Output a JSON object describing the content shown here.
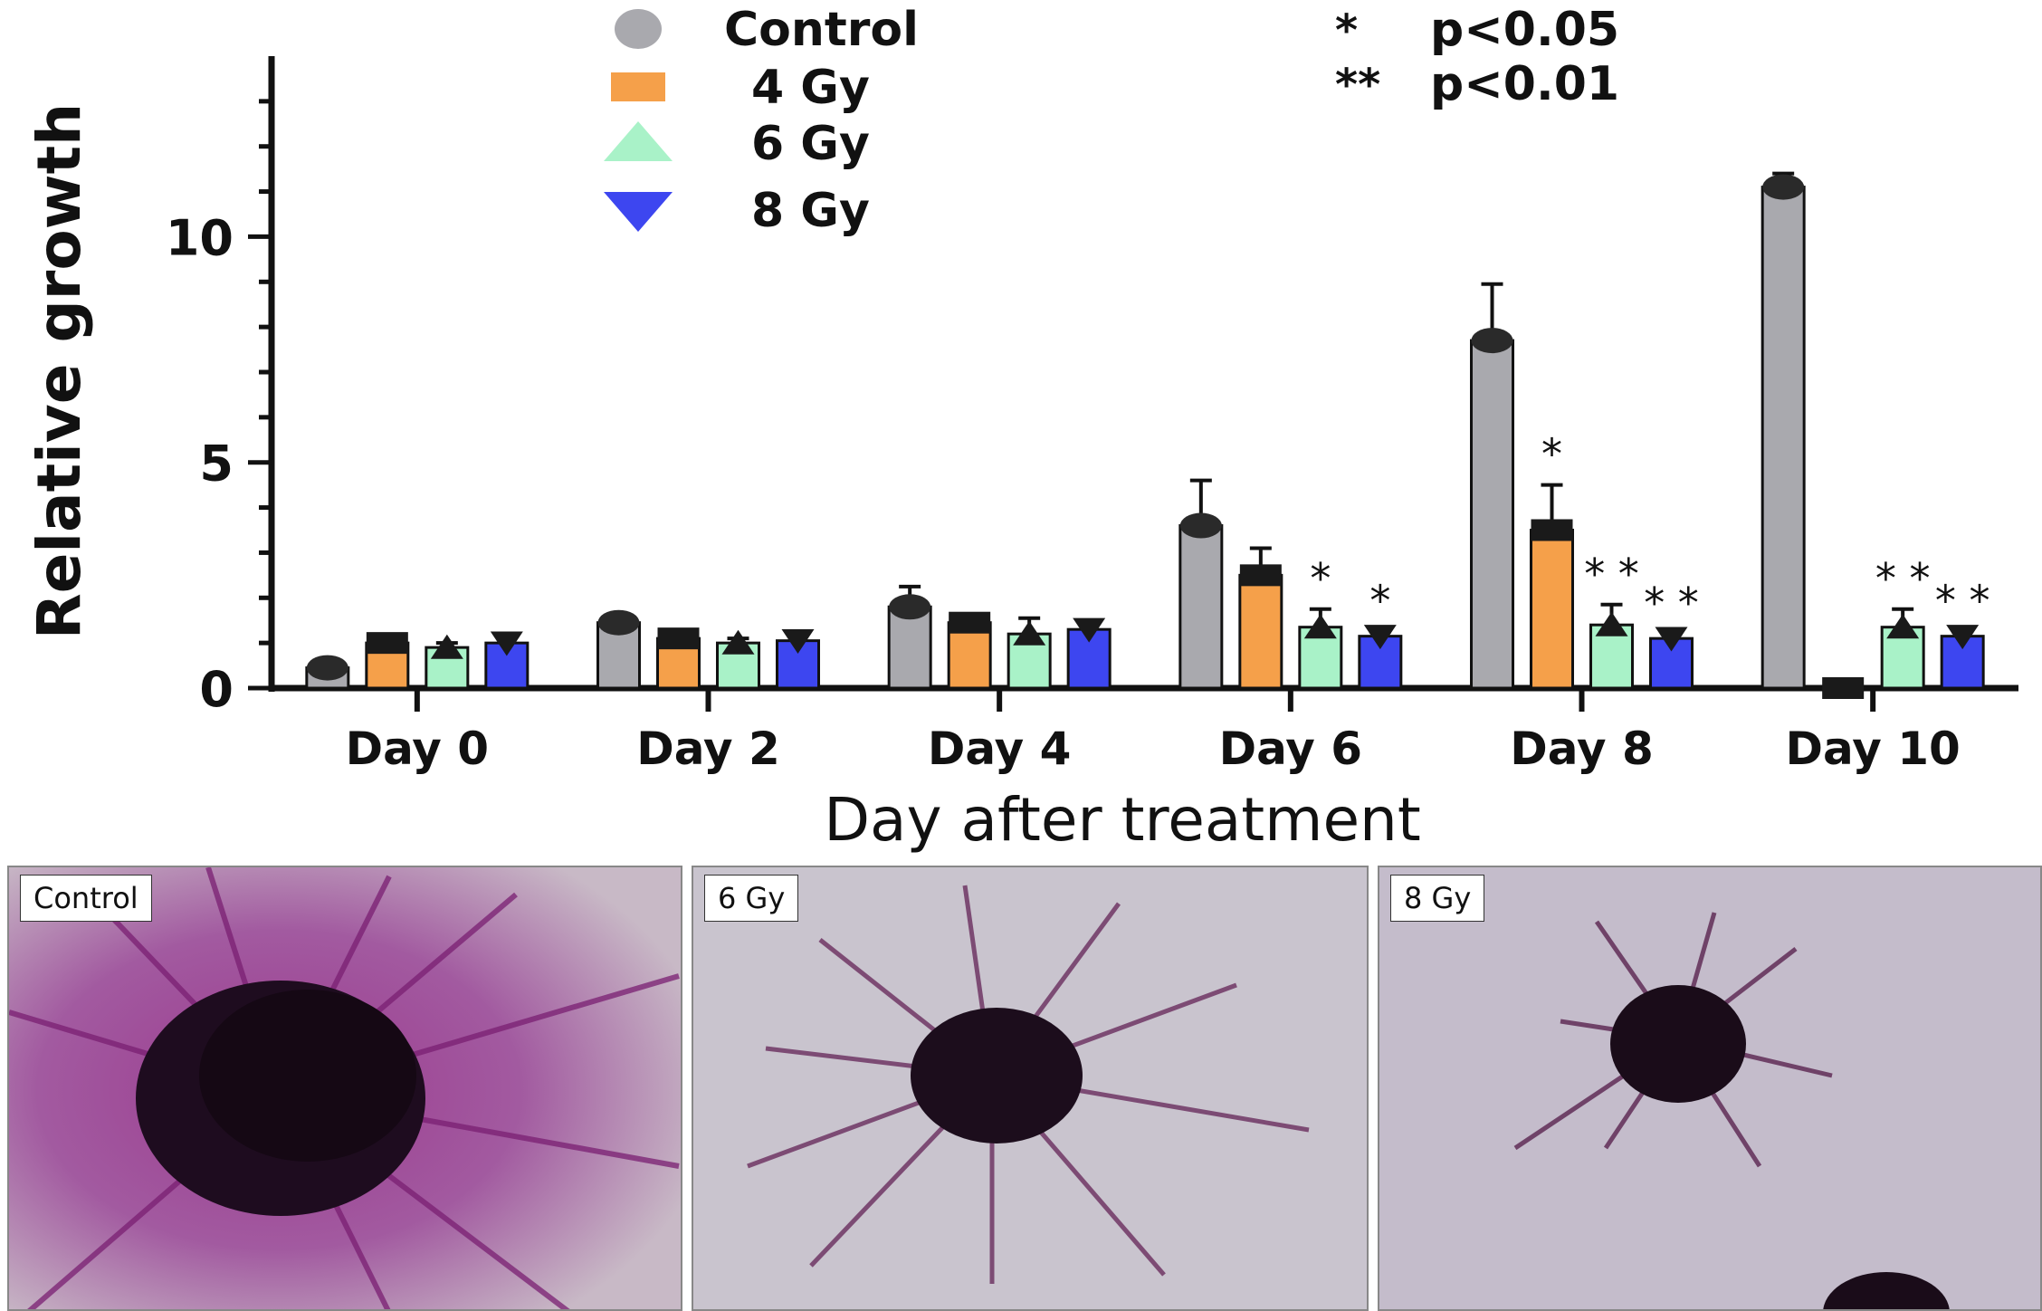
{
  "chart_data": {
    "type": "bar",
    "title": "",
    "xlabel": "Day after treatment",
    "ylabel": "Relative growth",
    "ylim": [
      0,
      14
    ],
    "yticks": [
      0,
      5,
      10
    ],
    "grid": false,
    "legend_position": "top-left",
    "categories": [
      "Day 0",
      "Day 2",
      "Day 4",
      "Day 6",
      "Day 8",
      "Day 10"
    ],
    "series": [
      {
        "name": "Control",
        "color": "#a9a9ae",
        "marker": "circle",
        "values": [
          0.45,
          1.45,
          1.8,
          3.6,
          7.7,
          11.1
        ],
        "errors": [
          0.1,
          0.1,
          0.45,
          1.0,
          1.25,
          0.3
        ],
        "significance": [
          "",
          "",
          "",
          "",
          "",
          ""
        ]
      },
      {
        "name": "4 Gy",
        "color": "#f5a04a",
        "marker": "square",
        "values": [
          1.0,
          1.1,
          1.45,
          2.5,
          3.5,
          0.0
        ],
        "errors": [
          0.05,
          0.05,
          0.1,
          0.6,
          1.0,
          0.05
        ],
        "significance": [
          "",
          "",
          "",
          "",
          "*",
          ""
        ]
      },
      {
        "name": "6 Gy",
        "color": "#a9f2c8",
        "marker": "triangle-up",
        "values": [
          0.9,
          1.0,
          1.2,
          1.35,
          1.4,
          1.35
        ],
        "errors": [
          0.1,
          0.1,
          0.35,
          0.4,
          0.45,
          0.4
        ],
        "significance": [
          "",
          "",
          "",
          "*",
          "* *",
          "* *"
        ]
      },
      {
        "name": "8 Gy",
        "color": "#3d46f0",
        "marker": "triangle-down",
        "values": [
          1.0,
          1.05,
          1.3,
          1.15,
          1.1,
          1.15
        ],
        "errors": [
          0.05,
          0.05,
          0.05,
          0.1,
          0.1,
          0.1
        ],
        "significance": [
          "",
          "",
          "",
          "*",
          "* *",
          "* *"
        ]
      }
    ],
    "annotations": [
      {
        "symbol": "*",
        "text": "p<0.05"
      },
      {
        "symbol": "**",
        "text": "p<0.01"
      }
    ]
  },
  "panels": [
    {
      "label": "Control"
    },
    {
      "label": "6 Gy"
    },
    {
      "label": "8 Gy"
    }
  ]
}
